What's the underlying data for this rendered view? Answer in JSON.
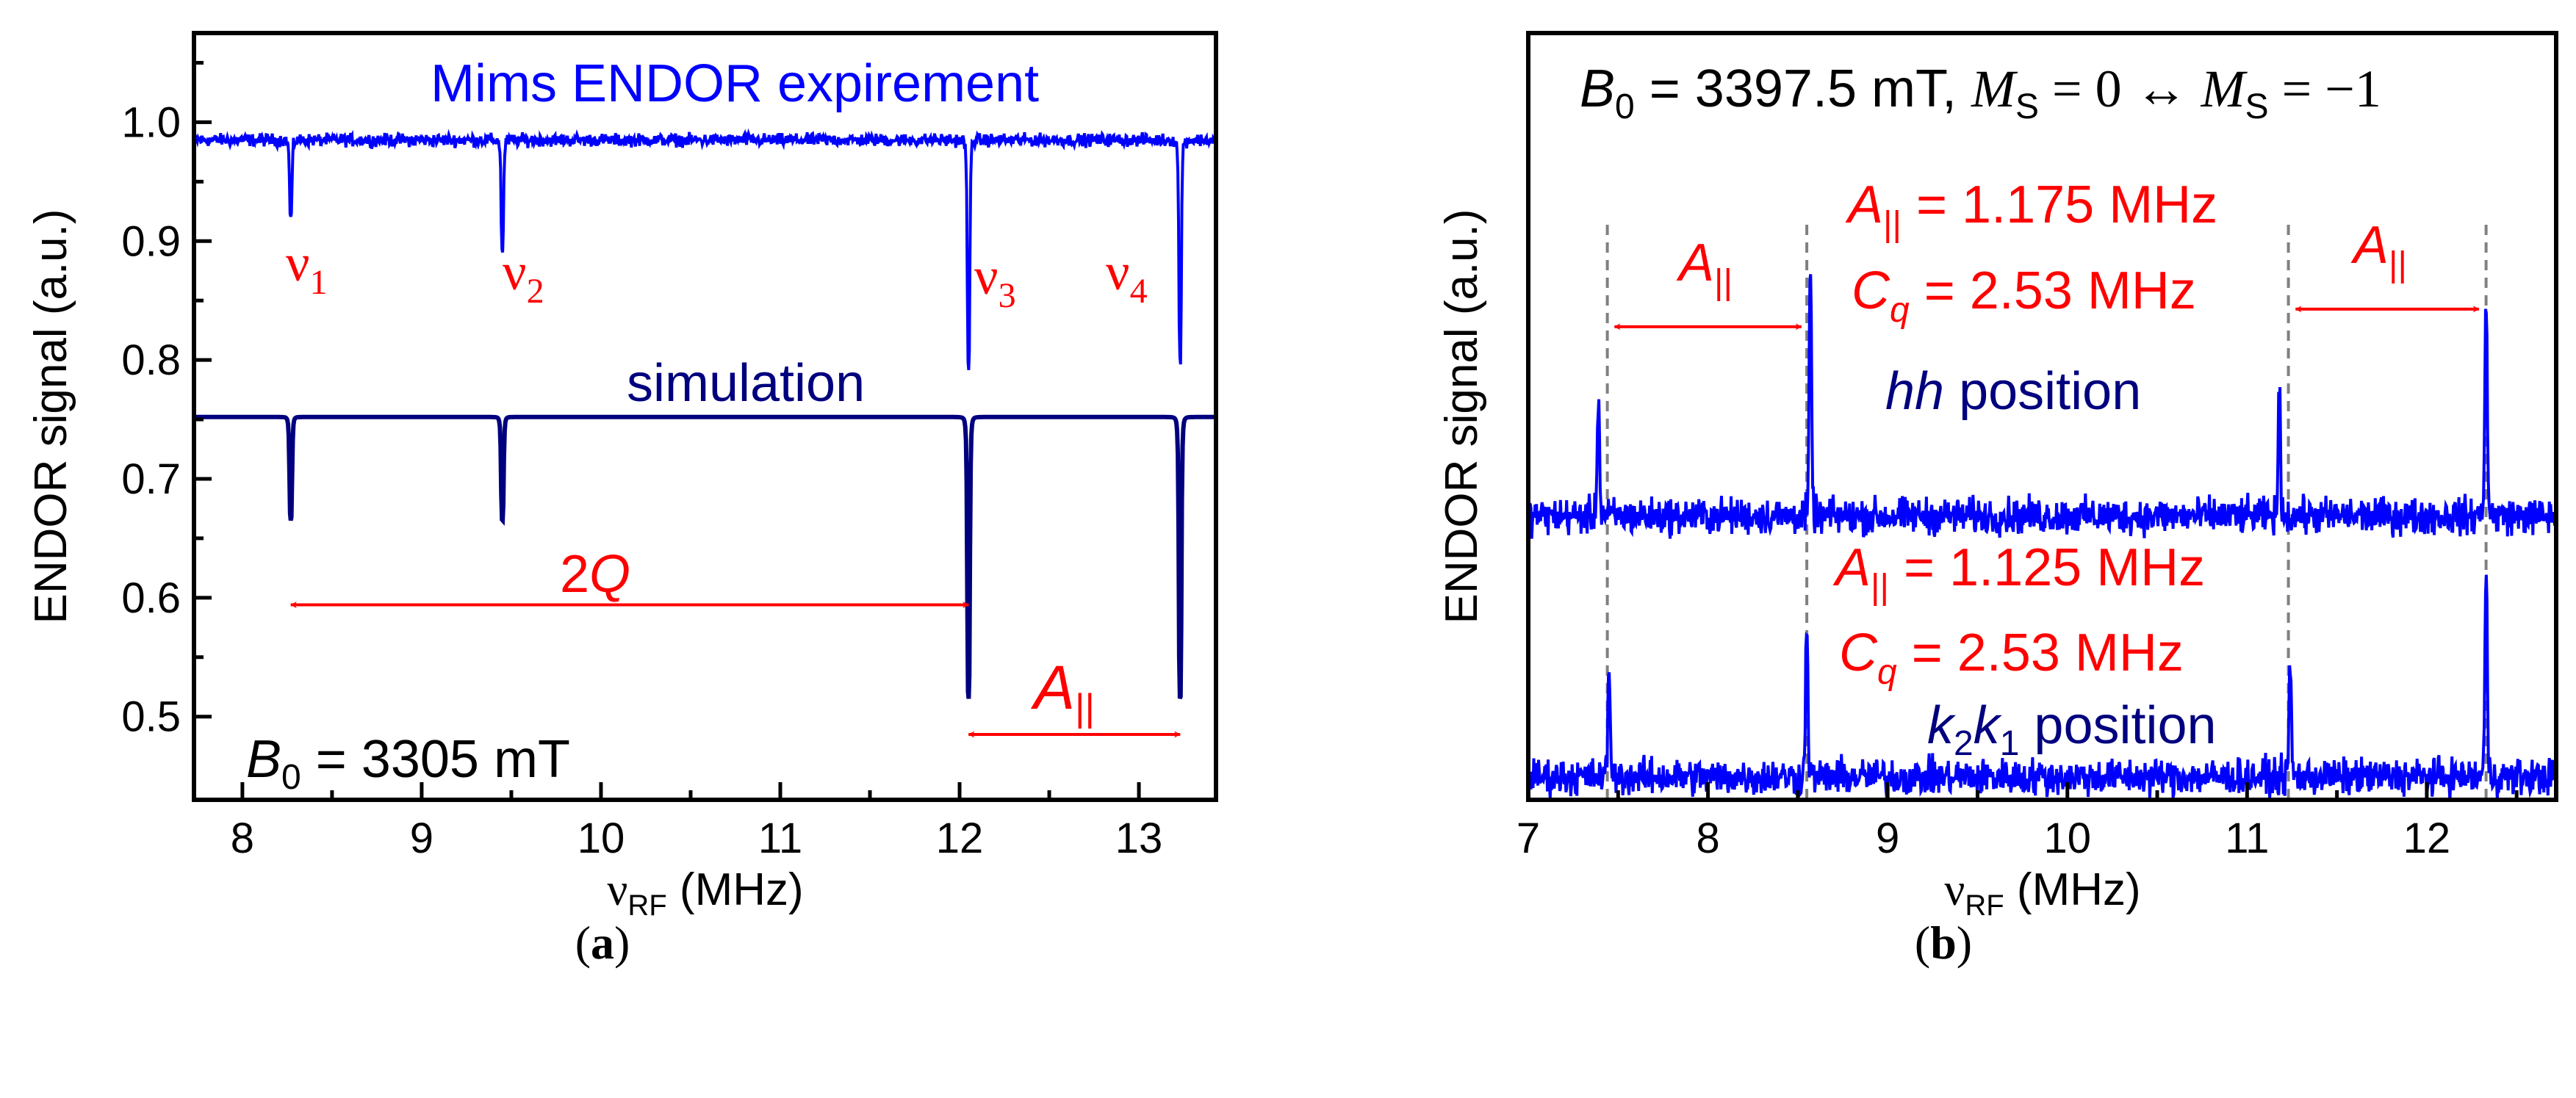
{
  "colors": {
    "experiment": "#0000ff",
    "simulation": "#00007f",
    "annotation": "#ff0000",
    "guide": "#808080"
  },
  "chart_data": [
    {
      "type": "line",
      "panel_label": {
        "open": "(",
        "letter": "a",
        "close": ")"
      },
      "xlabel": {
        "symbol": "ν",
        "sub": "RF",
        "unit": " (MHz)"
      },
      "ylabel": "ENDOR signal (a.u.)",
      "xlim": [
        7.73,
        13.43
      ],
      "ylim": [
        0.43,
        1.075
      ],
      "xticks": [
        8,
        9,
        10,
        11,
        12,
        13
      ],
      "xtick_labels": [
        "8",
        "9",
        "10",
        "11",
        "12",
        "13"
      ],
      "xminor": [
        7.5,
        8.5,
        9.5,
        10.5,
        11.5,
        12.5,
        13.5
      ],
      "yticks": [
        0.5,
        0.6,
        0.7,
        0.8,
        0.9,
        1.0
      ],
      "ytick_labels": [
        "0.5",
        "0.6",
        "0.7",
        "0.8",
        "0.9",
        "1.0"
      ],
      "yminor": [
        0.55,
        0.65,
        0.75,
        0.85,
        0.95,
        1.05
      ],
      "series": [
        {
          "name": "Mims ENDOR expirement",
          "color": "#0000ff",
          "baseline": 0.985,
          "noise": 0.004,
          "peaks": [
            {
              "x": 8.27,
              "y": 0.92
            },
            {
              "x": 9.45,
              "y": 0.893
            },
            {
              "x": 12.05,
              "y": 0.79
            },
            {
              "x": 13.23,
              "y": 0.8
            }
          ]
        },
        {
          "name": "simulation",
          "color": "#00007f",
          "baseline": 0.752,
          "noise": 0,
          "peaks": [
            {
              "x": 8.27,
              "y": 0.665
            },
            {
              "x": 9.45,
              "y": 0.665
            },
            {
              "x": 12.05,
              "y": 0.515
            },
            {
              "x": 13.23,
              "y": 0.515
            }
          ]
        }
      ],
      "arrows": [
        {
          "label": "2Q",
          "from": 8.27,
          "to": 12.05,
          "y": 0.594
        },
        {
          "label": "A∥",
          "from": 12.05,
          "to": 13.23,
          "y": 0.485
        }
      ],
      "text": {
        "exp_label": "Mims ENDOR expirement",
        "sim_label": "simulation",
        "nu": "ν",
        "nu_subs": [
          "1",
          "2",
          "3",
          "4"
        ],
        "twoq_num": "2",
        "twoq_q": "Q",
        "a_sym": "A",
        "a_sub": "||",
        "b0_sym": "B",
        "b0_sub": "0",
        "b0_val": " = 3305 mT"
      }
    },
    {
      "type": "line",
      "panel_label": {
        "open": "(",
        "letter": "b",
        "close": ")"
      },
      "xlabel": {
        "symbol": "ν",
        "sub": "RF",
        "unit": " (MHz)"
      },
      "ylabel": "ENDOR signal (a.u.)",
      "xlim": [
        7.0,
        12.72
      ],
      "ylim": [
        0,
        1
      ],
      "xticks": [
        7,
        8,
        9,
        10,
        11,
        12
      ],
      "xtick_labels": [
        "7",
        "8",
        "9",
        "10",
        "11",
        "12"
      ],
      "xminor": [
        7.5,
        8.5,
        9.5,
        10.5,
        11.5,
        12.5
      ],
      "series": [
        {
          "name": "hh position",
          "color": "#0000ff",
          "baseline": 0.37,
          "noise": 0.018,
          "peaks": [
            {
              "x": 7.39,
              "y": 0.52
            },
            {
              "x": 8.57,
              "y": 0.67
            },
            {
              "x": 11.18,
              "y": 0.52
            },
            {
              "x": 12.33,
              "y": 0.65
            }
          ]
        },
        {
          "name": "k2k1 position",
          "color": "#0000ff",
          "baseline": 0.03,
          "noise": 0.018,
          "peaks": [
            {
              "x": 7.45,
              "y": 0.165
            },
            {
              "x": 8.55,
              "y": 0.22
            },
            {
              "x": 11.24,
              "y": 0.17
            },
            {
              "x": 12.33,
              "y": 0.28
            }
          ]
        }
      ],
      "guides": [
        7.44,
        8.55,
        11.23,
        12.33
      ],
      "arrows": [
        {
          "label": "A∥",
          "from": 7.48,
          "to": 8.52,
          "y": 0.617
        },
        {
          "label": "A∥",
          "from": 11.27,
          "to": 12.29,
          "y": 0.64
        }
      ],
      "text": {
        "title": {
          "b": "B",
          "b_sub": "0",
          "b_val": " = 3397.5 mT, ",
          "m": "M",
          "m_sub": "S",
          "eq0": " = 0 ↔ ",
          "m2": "M",
          "m2_sub": "S",
          "eq1": " = −1"
        },
        "hh": {
          "a": "A",
          "a_sub": "||",
          "a_val": " = 1.175 MHz",
          "c": "C",
          "c_sub": "q",
          "c_val": " = 2.53 MHz",
          "pos_it": "hh",
          "pos": " position"
        },
        "kk": {
          "a": "A",
          "a_sub": "||",
          "a_val": " = 1.125 MHz",
          "c": "C",
          "c_sub": "q",
          "c_val": " = 2.53 MHz",
          "k2": "k",
          "k2_sub": "2",
          "k1": "k",
          "k1_sub": "1",
          "pos": " position"
        },
        "arrow_a": "A",
        "arrow_a_sub": "||"
      }
    }
  ]
}
